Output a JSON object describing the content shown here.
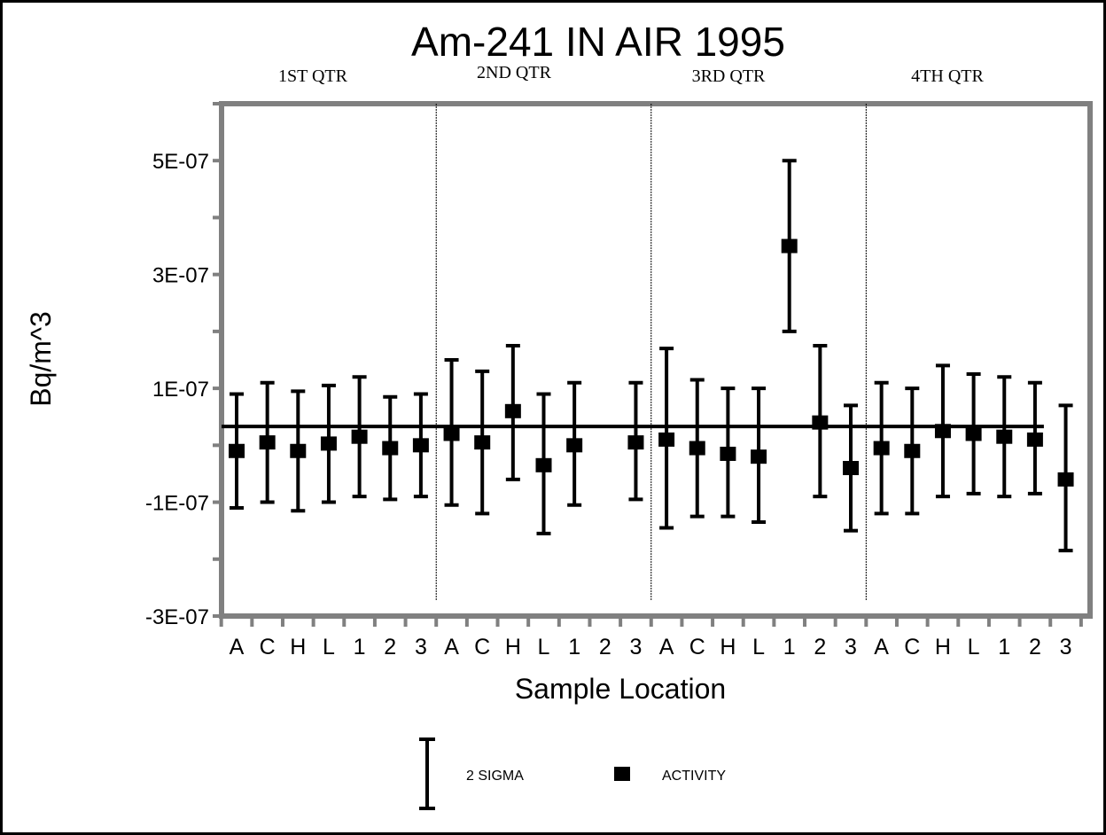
{
  "chart_data": {
    "type": "scatter",
    "title": "Am-241 IN AIR 1995",
    "xlabel": "Sample Location",
    "ylabel": "Bq/m^3",
    "ylim": [
      -3e-07,
      6e-07
    ],
    "yticks": [
      {
        "value": 5e-07,
        "label": "5E-07"
      },
      {
        "value": 3e-07,
        "label": "3E-07"
      },
      {
        "value": 1e-07,
        "label": "1E-07"
      },
      {
        "value": -1e-07,
        "label": "-1E-07"
      },
      {
        "value": -3e-07,
        "label": "-3E-07"
      }
    ],
    "quarters": [
      "1ST QTR",
      "2ND QTR",
      "3RD QTR",
      "4TH  QTR"
    ],
    "categories": [
      "A",
      "C",
      "H",
      "L",
      "1",
      "2",
      "3",
      "A",
      "C",
      "H",
      "L",
      "1",
      "2",
      "3",
      "A",
      "C",
      "H",
      "L",
      "1",
      "2",
      "3",
      "A",
      "C",
      "H",
      "L",
      "1",
      "2",
      "3"
    ],
    "reference_line": 3.3e-08,
    "series": [
      {
        "name": "ACTIVITY",
        "values": [
          -1e-08,
          5e-09,
          -1e-08,
          3e-09,
          1.5e-08,
          -5e-09,
          0.0,
          2e-08,
          5e-09,
          6e-08,
          -3.5e-08,
          0.0,
          null,
          5e-09,
          1e-08,
          -5e-09,
          -1.5e-08,
          -2e-08,
          3.5e-07,
          4e-08,
          -4e-08,
          -5e-09,
          -1e-08,
          2.5e-08,
          2e-08,
          1.5e-08,
          1e-08,
          -6e-08
        ],
        "sigma_low": [
          -1.1e-07,
          -1e-07,
          -1.15e-07,
          -1e-07,
          -9e-08,
          -9.5e-08,
          -9e-08,
          -1.05e-07,
          -1.2e-07,
          -6e-08,
          -1.55e-07,
          -1.05e-07,
          null,
          -9.5e-08,
          -1.45e-07,
          -1.25e-07,
          -1.25e-07,
          -1.35e-07,
          2e-07,
          -9e-08,
          -1.5e-07,
          -1.2e-07,
          -1.2e-07,
          -9e-08,
          -8.5e-08,
          -9e-08,
          -8.5e-08,
          -1.85e-07
        ],
        "sigma_high": [
          9e-08,
          1.1e-07,
          9.5e-08,
          1.05e-07,
          1.2e-07,
          8.5e-08,
          9e-08,
          1.5e-07,
          1.3e-07,
          1.75e-07,
          9e-08,
          1.1e-07,
          null,
          1.1e-07,
          1.7e-07,
          1.15e-07,
          1e-07,
          1e-07,
          5e-07,
          1.75e-07,
          7e-08,
          1.1e-07,
          1e-07,
          1.4e-07,
          1.25e-07,
          1.2e-07,
          1.1e-07,
          7e-08
        ]
      }
    ],
    "legend": [
      {
        "symbol": "error-bar",
        "label": "2 SIGMA"
      },
      {
        "symbol": "square",
        "label": "ACTIVITY"
      }
    ]
  }
}
